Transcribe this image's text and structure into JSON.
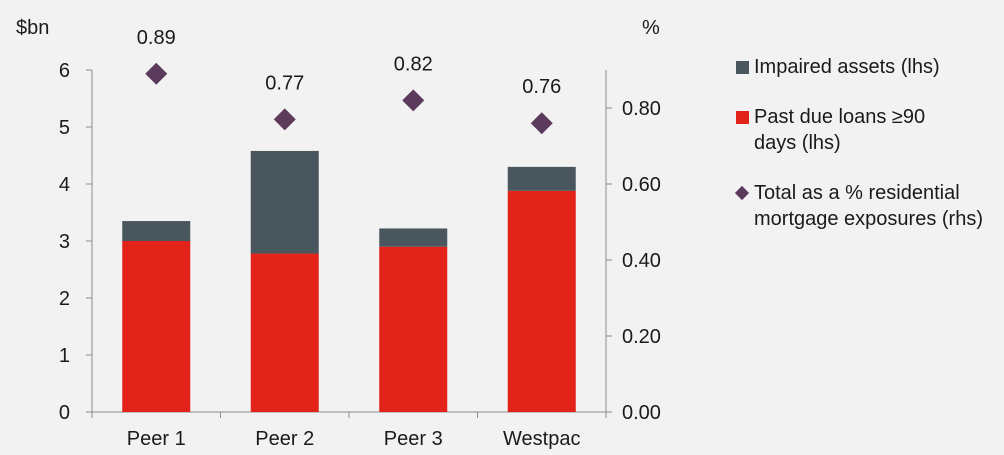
{
  "chart_data": {
    "type": "bar",
    "stacked": true,
    "categories": [
      "Peer 1",
      "Peer 2",
      "Peer 3",
      "Westpac"
    ],
    "y_left": {
      "unit_label": "$bn",
      "ylim": [
        0,
        6
      ],
      "ticks": [
        "0",
        "1",
        "2",
        "3",
        "4",
        "5",
        "6"
      ]
    },
    "y_right": {
      "unit_label": "%",
      "ylim": [
        0,
        0.9
      ],
      "ticks": [
        "0.00",
        "0.20",
        "0.40",
        "0.60",
        "0.80"
      ]
    },
    "series": [
      {
        "name": "Past due loans ≥90 days (lhs)",
        "axis": "left",
        "kind": "bar",
        "color": "#e2231a",
        "values": [
          3.0,
          2.78,
          2.9,
          3.88
        ]
      },
      {
        "name": "Impaired assets (lhs)",
        "axis": "left",
        "kind": "bar",
        "color": "#4a565e",
        "values": [
          0.35,
          1.8,
          0.32,
          0.42
        ]
      },
      {
        "name": "Total as a % residential mortgage exposures (rhs)",
        "axis": "right",
        "kind": "scatter",
        "marker": "diamond",
        "color": "#5b3a5b",
        "values": [
          0.89,
          0.77,
          0.82,
          0.76
        ],
        "labels": [
          "0.89",
          "0.77",
          "0.82",
          "0.76"
        ]
      }
    ],
    "legend_position": "right",
    "grid": false
  },
  "legend": {
    "items": [
      {
        "label": "Impaired assets (lhs)",
        "color": "#4a565e",
        "shape": "square"
      },
      {
        "label": "Past due loans ≥90 days (lhs)",
        "color": "#e2231a",
        "shape": "square"
      },
      {
        "label": "Total as a % residential mortgage exposures (rhs)",
        "color": "#5b3a5b",
        "shape": "diamond"
      }
    ]
  }
}
